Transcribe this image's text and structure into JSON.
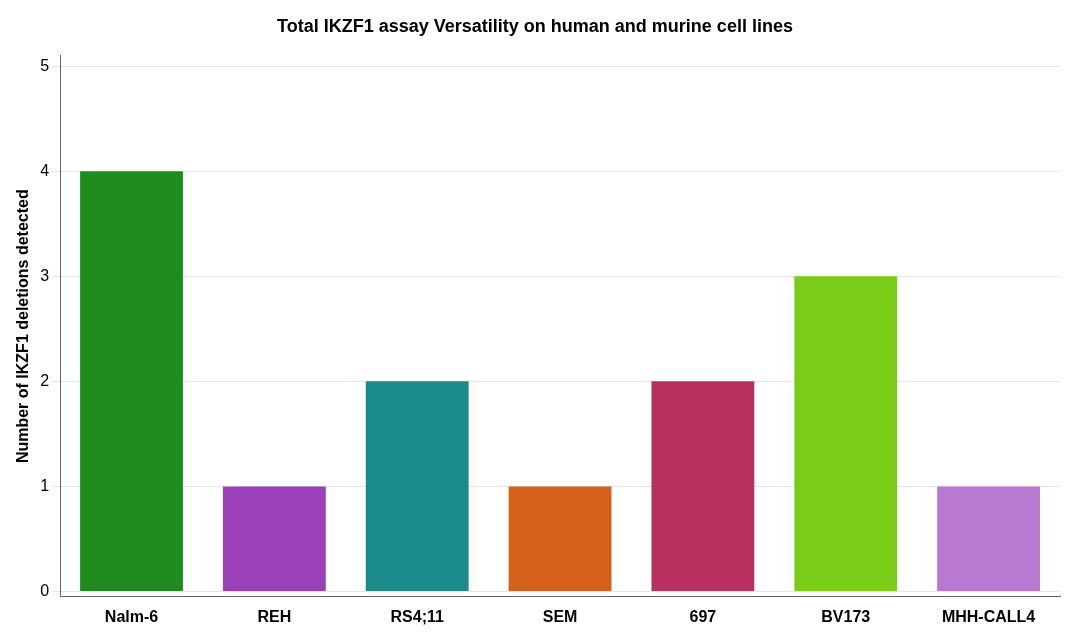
{
  "chart_data": {
    "type": "bar",
    "title": "Total IKZF1 assay Versatility on human and murine cell lines",
    "categories": [
      "Nalm-6",
      "REH",
      "RS4;11",
      "SEM",
      "697",
      "BV173",
      "MHH-CALL4"
    ],
    "values": [
      4,
      1,
      2,
      1,
      2,
      3,
      1
    ],
    "colors": [
      "#1e8c1e",
      "#9b40b8",
      "#1a8a8a",
      "#d4601a",
      "#b83060",
      "#7acc18",
      "#b87ad0"
    ],
    "ylabel": "Number of IKZF1 deletions detected",
    "ylim": [
      -0.05,
      5.1
    ],
    "yticks": [
      0,
      1,
      2,
      3,
      4,
      5
    ],
    "grid": true
  }
}
